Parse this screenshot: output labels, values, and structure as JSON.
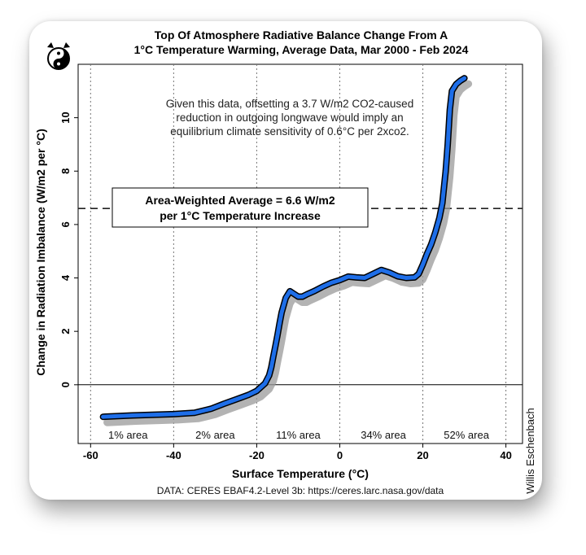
{
  "chart_data": {
    "type": "line",
    "title": [
      "Top Of Atmosphere Radiative Balance Change From A",
      "1°C Temperature Warming, Average Data, Mar 2000 - Feb 2024"
    ],
    "xlabel": "Surface Temperature (°C)",
    "ylabel": "Change in Radiation Imbalance (W/m2 per °C)",
    "xlim": [
      -63,
      44
    ],
    "ylim": [
      -2.2,
      12.0
    ],
    "xticks": [
      -60,
      -40,
      -20,
      0,
      20,
      40
    ],
    "yticks": [
      0,
      2,
      4,
      6,
      8,
      10
    ],
    "xgrid": [
      -60,
      -40,
      -20,
      0,
      20,
      40
    ],
    "series": [
      {
        "x": [
          -57,
          -50,
          -40,
          -35,
          -31,
          -28,
          -25,
          -22,
          -20,
          -18,
          -17,
          -16.5,
          -16,
          -15.5,
          -15,
          -14.5,
          -14,
          -13,
          -12,
          -11,
          -10,
          -9,
          -8,
          -6,
          -4,
          -2,
          0,
          2,
          4,
          6,
          8,
          10,
          12,
          14,
          16,
          18,
          19,
          20,
          21,
          22,
          23,
          24,
          24.7,
          25.5,
          26,
          26.5,
          27,
          28,
          29,
          30
        ],
        "y": [
          -1.2,
          -1.15,
          -1.1,
          -1.05,
          -0.9,
          -0.72,
          -0.55,
          -0.38,
          -0.23,
          0.05,
          0.35,
          0.65,
          1.05,
          1.45,
          1.85,
          2.3,
          2.7,
          3.25,
          3.5,
          3.4,
          3.3,
          3.3,
          3.38,
          3.52,
          3.68,
          3.82,
          3.92,
          4.05,
          4.02,
          4.0,
          4.15,
          4.3,
          4.2,
          4.06,
          4.0,
          4.02,
          4.15,
          4.5,
          4.9,
          5.25,
          5.7,
          6.25,
          6.8,
          8.0,
          9.0,
          10.3,
          11.0,
          11.25,
          11.38,
          11.48
        ],
        "color": "#1e6ee8"
      }
    ],
    "reference_line": {
      "y": 6.6,
      "style": "dashed",
      "color": "#222222"
    },
    "zero_line": {
      "y": 0
    },
    "annotation_box": {
      "lines": [
        "Area-Weighted Average = 6.6 W/m2",
        "per 1°C Temperature Increase"
      ]
    },
    "annotation_text": [
      "Given this data, offsetting a 3.7 W/m2 CO2-caused",
      "reduction in outgoing longwave would imply an",
      "equilibrium climate sensitivity of 0.6°C per 2xco2."
    ],
    "region_labels": [
      {
        "text": "1% area",
        "x": -51
      },
      {
        "text": "2% area",
        "x": -30
      },
      {
        "text": "11% area",
        "x": -10
      },
      {
        "text": "34% area",
        "x": 10.5
      },
      {
        "text": "52% area",
        "x": 30.5
      }
    ],
    "source": "DATA: CERES EBAF4.2-Level 3b: https://ceres.larc.nasa.gov/data",
    "credit": "Willis Eschenbach",
    "grid": "vertical dotted",
    "legend": "none"
  }
}
